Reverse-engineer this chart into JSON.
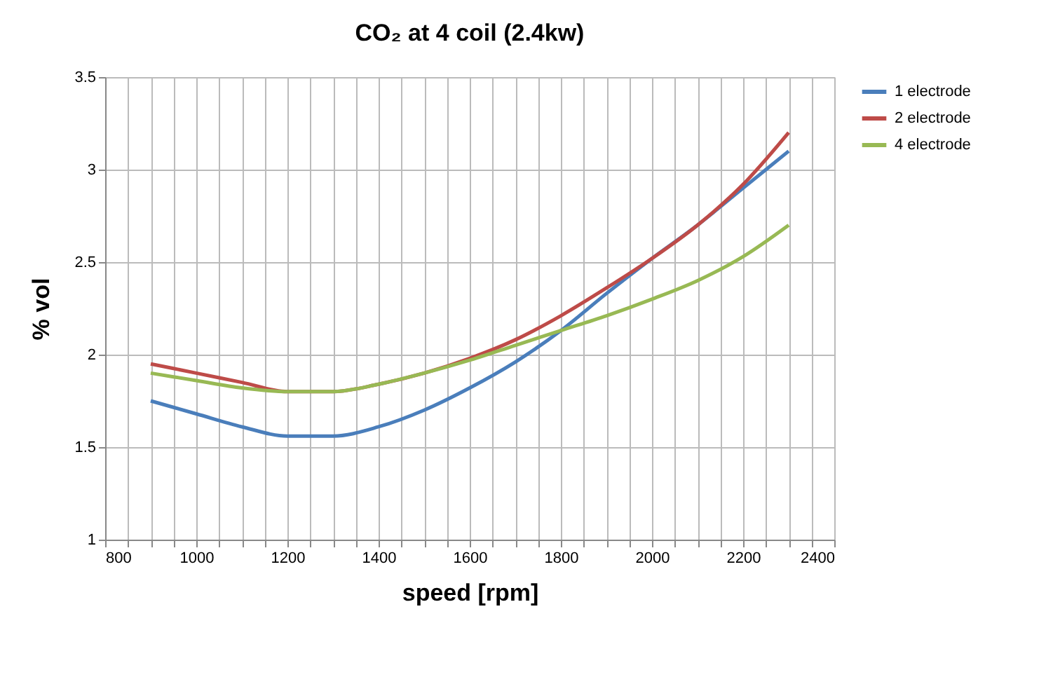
{
  "chart_data": {
    "type": "line",
    "title": "CO₂  at 4 coil (2.4kw)",
    "xlabel": "speed [rpm]",
    "ylabel": "% vol",
    "x": [
      900,
      1000,
      1100,
      1200,
      1300,
      1400,
      1500,
      1600,
      1700,
      1800,
      1900,
      2000,
      2100,
      2200,
      2300
    ],
    "series": [
      {
        "name": "1 electrode",
        "color": "#4a7ebb",
        "values": [
          1.75,
          1.68,
          1.61,
          1.56,
          1.56,
          1.61,
          1.7,
          1.82,
          1.96,
          2.13,
          2.33,
          2.52,
          2.7,
          2.9,
          3.1
        ]
      },
      {
        "name": "2 electrode",
        "color": "#be4b48",
        "values": [
          1.95,
          1.9,
          1.85,
          1.8,
          1.8,
          1.84,
          1.9,
          1.98,
          2.08,
          2.21,
          2.36,
          2.52,
          2.7,
          2.92,
          3.2
        ]
      },
      {
        "name": "4 electrode",
        "color": "#98b954",
        "values": [
          1.9,
          1.86,
          1.82,
          1.8,
          1.8,
          1.84,
          1.9,
          1.97,
          2.05,
          2.13,
          2.21,
          2.3,
          2.4,
          2.53,
          2.7
        ]
      }
    ],
    "xlim": [
      800,
      2400
    ],
    "xticks": [
      800,
      {
        "value": 850,
        "label": null
      },
      {
        "value": 900,
        "label": null
      },
      {
        "value": 950,
        "label": null
      },
      1000,
      {
        "value": 1050,
        "label": null
      },
      {
        "value": 1100,
        "label": null
      },
      {
        "value": 1150,
        "label": null
      },
      1200,
      {
        "value": 1250,
        "label": null
      },
      {
        "value": 1300,
        "label": null
      },
      {
        "value": 1350,
        "label": null
      },
      1400,
      {
        "value": 1450,
        "label": null
      },
      {
        "value": 1500,
        "label": null
      },
      {
        "value": 1550,
        "label": null
      },
      1600,
      {
        "value": 1650,
        "label": null
      },
      {
        "value": 1700,
        "label": null
      },
      {
        "value": 1750,
        "label": null
      },
      1800,
      {
        "value": 1850,
        "label": null
      },
      {
        "value": 1900,
        "label": null
      },
      {
        "value": 1950,
        "label": null
      },
      2000,
      {
        "value": 2050,
        "label": null
      },
      {
        "value": 2100,
        "label": null
      },
      {
        "value": 2150,
        "label": null
      },
      2200,
      {
        "value": 2250,
        "label": null
      },
      {
        "value": 2300,
        "label": null
      },
      {
        "value": 2350,
        "label": null
      },
      2400
    ],
    "ylim": [
      1,
      3.5
    ],
    "yticks": [
      1,
      1.5,
      2,
      2.5,
      3,
      3.5
    ],
    "grid": true,
    "legend": "right",
    "marker": "none",
    "line_style": "solid"
  }
}
